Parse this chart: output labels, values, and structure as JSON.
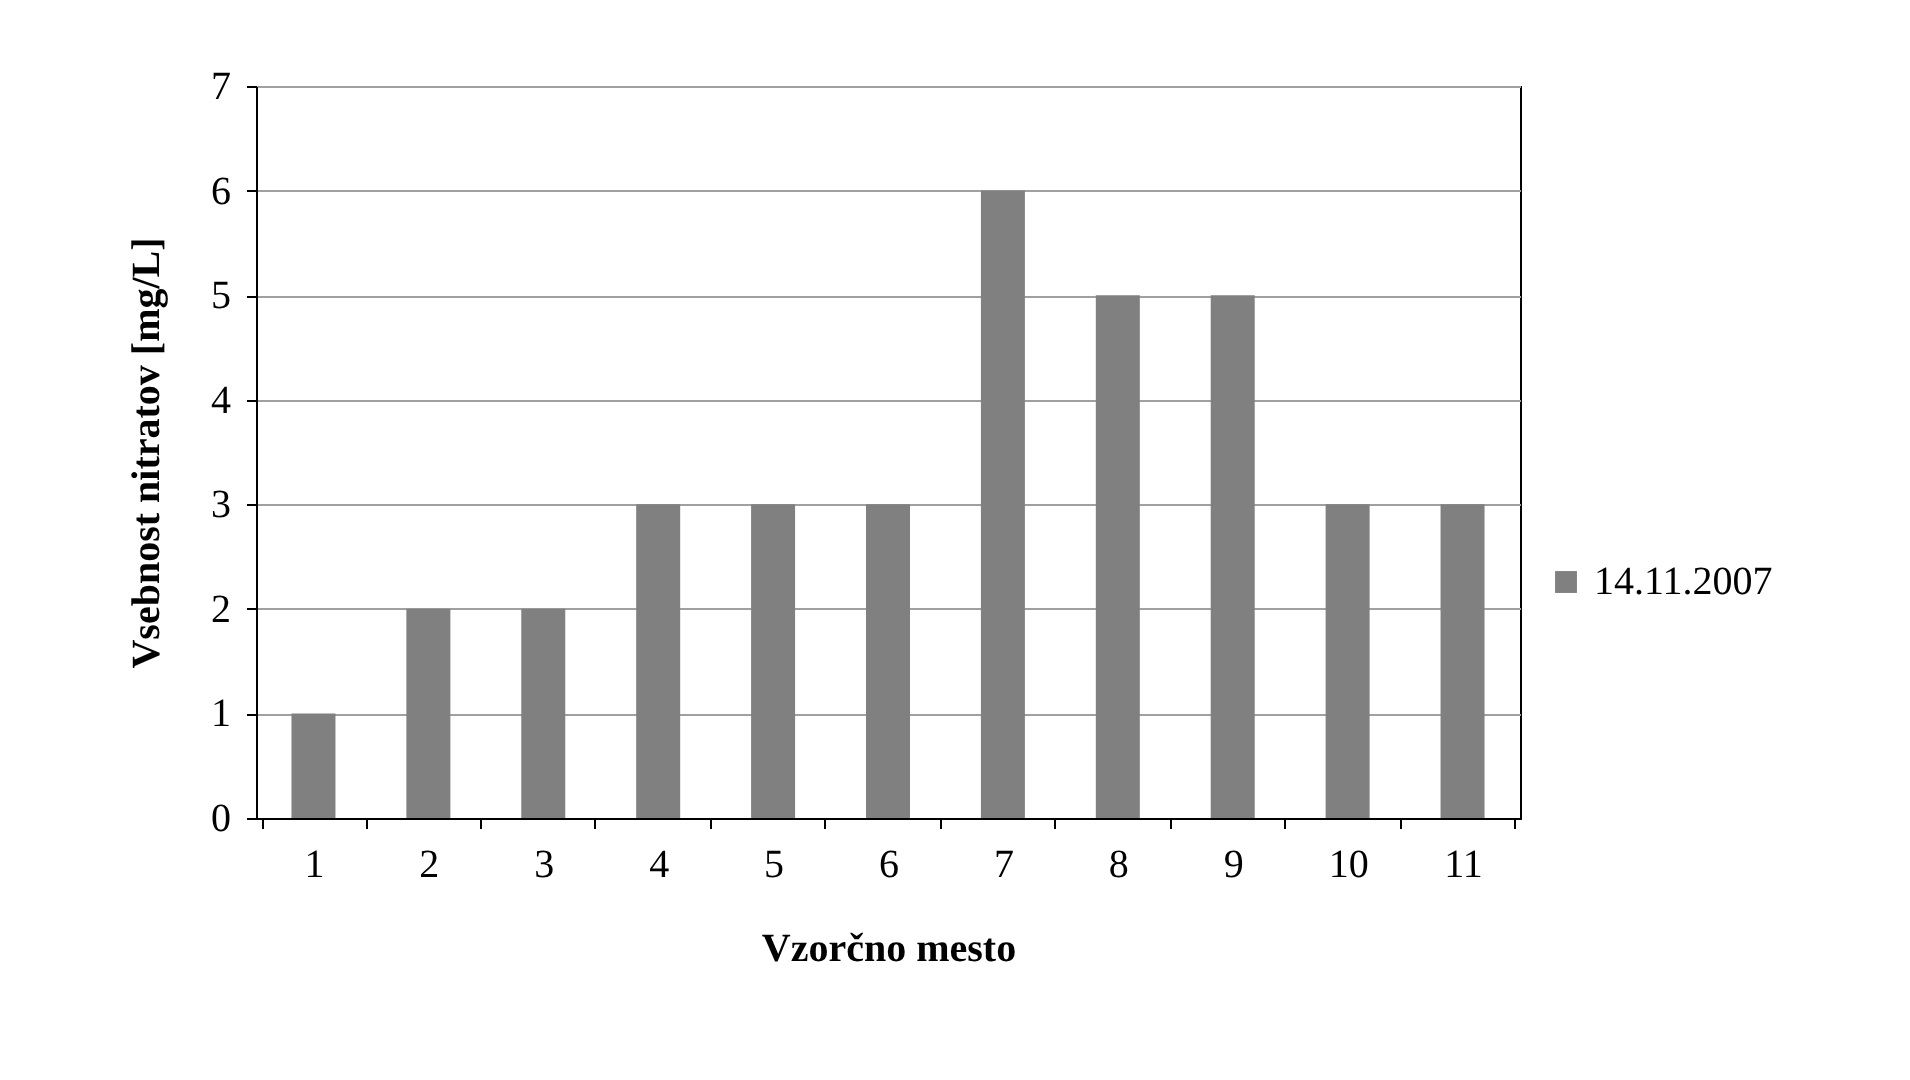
{
  "chart_data": {
    "type": "bar",
    "xlabel": "Vzorčno mesto",
    "ylabel": "Vsebnost nitratov [mg/L]",
    "categories": [
      "1",
      "2",
      "3",
      "4",
      "5",
      "6",
      "7",
      "8",
      "9",
      "10",
      "11"
    ],
    "series": [
      {
        "name": "14.11.2007",
        "color": "#808080",
        "values": [
          1,
          2,
          2,
          3,
          3,
          3,
          6,
          5,
          5,
          3,
          3
        ]
      }
    ],
    "ylim": [
      0,
      7
    ],
    "yticks": [
      0,
      1,
      2,
      3,
      4,
      5,
      6,
      7
    ],
    "grid": "y",
    "legend": "right"
  }
}
